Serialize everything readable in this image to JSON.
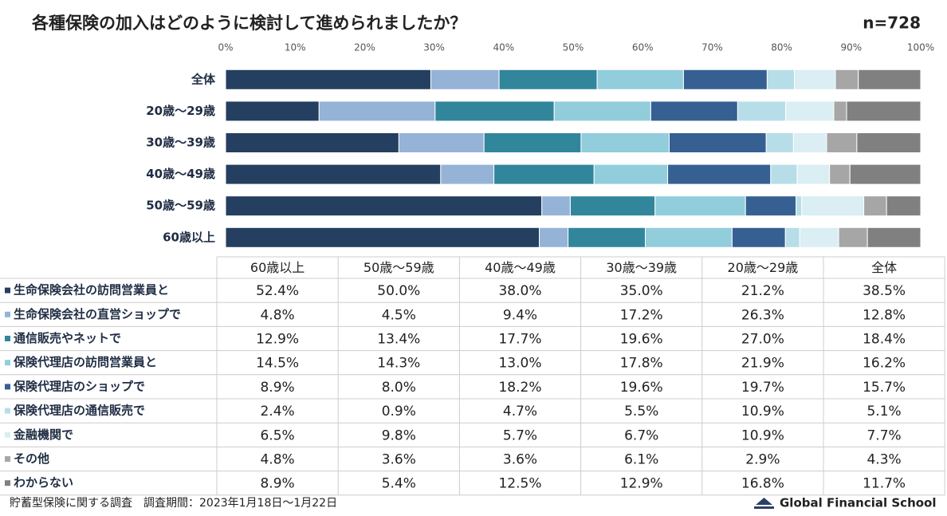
{
  "chart_data": {
    "type": "bar",
    "orientation": "horizontal",
    "stacked": "percent",
    "title": "各種保険の加入はどのように検討して進められましたか？",
    "sample_size": "n=728",
    "source": "貯蓄型保険に関する調査　調査期間：2023年1月18日～1月22日",
    "brand": "Global Financial School",
    "categories": [
      "全体",
      "20歳～29歳",
      "30歳～39歳",
      "40歳～49歳",
      "50歳～59歳",
      "60歳以上"
    ],
    "xlim": [
      0,
      100
    ],
    "xticks": [
      {
        "value": 0,
        "label": "0%"
      },
      {
        "value": 10,
        "label": "10%"
      },
      {
        "value": 20,
        "label": "20%"
      },
      {
        "value": 30,
        "label": "30%"
      },
      {
        "value": 40,
        "label": "40%"
      },
      {
        "value": 50,
        "label": "50%"
      },
      {
        "value": 60,
        "label": "60%"
      },
      {
        "value": 70,
        "label": "70%"
      },
      {
        "value": 80,
        "label": "80%"
      },
      {
        "value": 90,
        "label": "90%"
      },
      {
        "value": 100,
        "label": "100%"
      }
    ],
    "series": [
      {
        "name": "生命保険会社の訪問営業員と",
        "color": "#243f60",
        "values": [
          38.5,
          21.2,
          35.0,
          38.0,
          50.0,
          52.4
        ],
        "value_labels": [
          "38.5%",
          "21.2%",
          "35.0%",
          "38.0%",
          "50.0%",
          "52.4%"
        ]
      },
      {
        "name": "生命保険会社の直営ショップで",
        "color": "#95b3d7",
        "values": [
          12.8,
          26.3,
          17.2,
          9.4,
          4.5,
          4.8
        ],
        "value_labels": [
          "12.8%",
          "26.3%",
          "17.2%",
          "9.4%",
          "4.5%",
          "4.8%"
        ]
      },
      {
        "name": "通信販売やネットで",
        "color": "#31869b",
        "values": [
          18.4,
          27.0,
          19.6,
          17.7,
          13.4,
          12.9
        ],
        "value_labels": [
          "18.4%",
          "27.0%",
          "19.6%",
          "17.7%",
          "13.4%",
          "12.9%"
        ]
      },
      {
        "name": "保険代理店の訪問営業員と",
        "color": "#92cddc",
        "values": [
          16.2,
          21.9,
          17.8,
          13.0,
          14.3,
          14.5
        ],
        "value_labels": [
          "16.2%",
          "21.9%",
          "17.8%",
          "13.0%",
          "14.3%",
          "14.5%"
        ]
      },
      {
        "name": "保険代理店のショップで",
        "color": "#366092",
        "values": [
          15.7,
          19.7,
          19.6,
          18.2,
          8.0,
          8.9
        ],
        "value_labels": [
          "15.7%",
          "19.7%",
          "19.6%",
          "18.2%",
          "8.0%",
          "8.9%"
        ]
      },
      {
        "name": "保険代理店の通信販売で",
        "color": "#b7dee8",
        "values": [
          5.1,
          10.9,
          5.5,
          4.7,
          0.9,
          2.4
        ],
        "value_labels": [
          "5.1%",
          "10.9%",
          "5.5%",
          "4.7%",
          "0.9%",
          "2.4%"
        ]
      },
      {
        "name": "金融機関で",
        "color": "#daeef3",
        "values": [
          7.7,
          10.9,
          6.7,
          5.7,
          9.8,
          6.5
        ],
        "value_labels": [
          "7.7%",
          "10.9%",
          "6.7%",
          "5.7%",
          "9.8%",
          "6.5%"
        ]
      },
      {
        "name": "その他",
        "color": "#a6a6a6",
        "values": [
          4.3,
          2.9,
          6.1,
          3.6,
          3.6,
          4.8
        ],
        "value_labels": [
          "4.3%",
          "2.9%",
          "6.1%",
          "3.6%",
          "3.6%",
          "4.8%"
        ]
      },
      {
        "name": "わからない",
        "color": "#808080",
        "values": [
          11.7,
          16.8,
          12.9,
          12.5,
          5.4,
          8.9
        ],
        "value_labels": [
          "11.7%",
          "16.8%",
          "12.9%",
          "12.5%",
          "5.4%",
          "8.9%"
        ]
      }
    ]
  }
}
